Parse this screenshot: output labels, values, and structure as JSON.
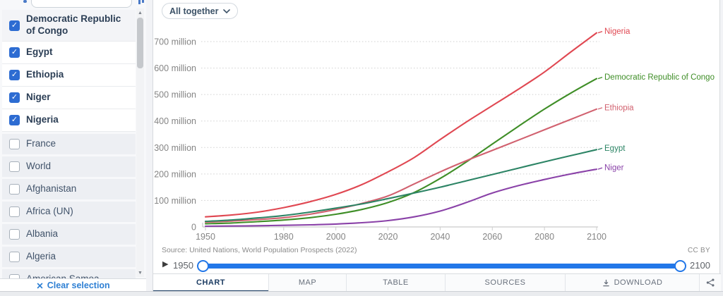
{
  "colors": {
    "accent": "#2d6cd2",
    "slider": "#2277e8",
    "navy": "#1d3d63"
  },
  "icons": {
    "check_glyph": "✓",
    "play_glyph": "▶",
    "clear_glyph": "✕",
    "scroll_up_glyph": "▲",
    "scroll_down_glyph": "▼"
  },
  "sidebar": {
    "entities": [
      {
        "label": "Democratic Republic of Congo",
        "checked": true
      },
      {
        "label": "Egypt",
        "checked": true
      },
      {
        "label": "Ethiopia",
        "checked": true
      },
      {
        "label": "Niger",
        "checked": true
      },
      {
        "label": "Nigeria",
        "checked": true
      },
      {
        "label": "France",
        "checked": false
      },
      {
        "label": "World",
        "checked": false
      },
      {
        "label": "Afghanistan",
        "checked": false
      },
      {
        "label": "Africa (UN)",
        "checked": false
      },
      {
        "label": "Albania",
        "checked": false
      },
      {
        "label": "Algeria",
        "checked": false
      },
      {
        "label": "American Samoa",
        "checked": false
      }
    ],
    "clear_selection_label": "Clear selection"
  },
  "toolbar": {
    "grouping_label": "All together"
  },
  "chart_data": {
    "type": "line",
    "title": "",
    "xlabel": "",
    "ylabel": "",
    "x": [
      1950,
      1960,
      1970,
      1980,
      1990,
      2000,
      2010,
      2020,
      2030,
      2040,
      2050,
      2060,
      2070,
      2080,
      2090,
      2100
    ],
    "series": [
      {
        "name": "Nigeria",
        "color": "#e04852",
        "values": [
          38,
          45,
          56,
          73,
          95,
          123,
          160,
          208,
          262,
          330,
          396,
          458,
          520,
          585,
          660,
          733
        ]
      },
      {
        "name": "Democratic Republic of Congo",
        "color": "#3f8e27",
        "values": [
          12,
          15,
          20,
          26,
          35,
          48,
          66,
          92,
          130,
          183,
          245,
          313,
          380,
          445,
          505,
          560
        ]
      },
      {
        "name": "Ethiopia",
        "color": "#d1616f",
        "values": [
          18,
          22,
          28,
          35,
          48,
          66,
          89,
          117,
          162,
          208,
          250,
          289,
          328,
          367,
          406,
          445
        ]
      },
      {
        "name": "Egypt",
        "color": "#2c8465",
        "values": [
          21,
          26,
          34,
          43,
          56,
          71,
          87,
          107,
          128,
          150,
          174,
          198,
          222,
          246,
          269,
          292
        ]
      },
      {
        "name": "Niger",
        "color": "#8a42a8",
        "values": [
          2.6,
          3.4,
          4.5,
          6.1,
          8,
          11,
          16,
          24,
          38,
          60,
          92,
          128,
          156,
          179,
          200,
          218
        ]
      }
    ],
    "yticks": [
      0,
      100,
      200,
      300,
      400,
      500,
      600,
      700
    ],
    "ytick_labels": [
      "0",
      "100 million",
      "200 million",
      "300 million",
      "400 million",
      "500 million",
      "600 million",
      "700 million"
    ],
    "xticks": [
      1950,
      1980,
      2000,
      2020,
      2040,
      2060,
      2080,
      2100
    ],
    "xlim": [
      1950,
      2100
    ],
    "ylim": [
      0,
      760
    ],
    "grid": "dotted horizontal",
    "legend_position": "line-end labels"
  },
  "footer": {
    "source": "Source: United Nations, World Population Prospects (2022)",
    "license": "CC BY",
    "timeline": {
      "start": "1950",
      "end": "2100"
    },
    "tabs": [
      {
        "label": "CHART",
        "active": true
      },
      {
        "label": "MAP",
        "active": false
      },
      {
        "label": "TABLE",
        "active": false
      },
      {
        "label": "SOURCES",
        "active": false
      },
      {
        "label": "DOWNLOAD",
        "active": false,
        "icon": "download-icon"
      }
    ]
  }
}
